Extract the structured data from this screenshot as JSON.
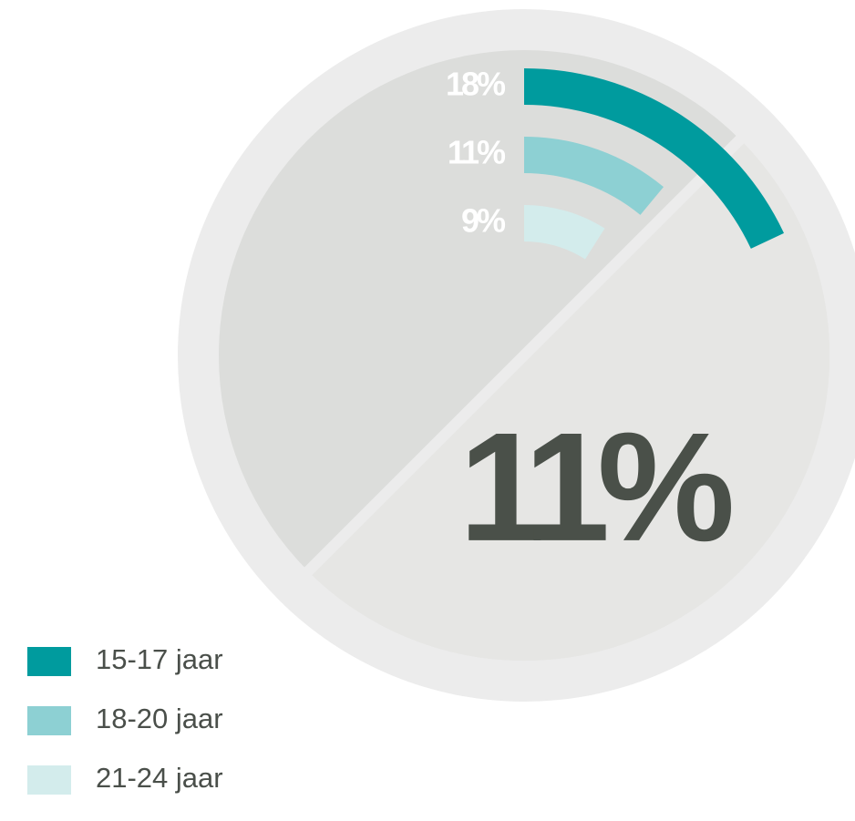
{
  "chart_data": {
    "type": "radial_bar",
    "categories": [
      "15-17 jaar",
      "18-20 jaar",
      "21-24 jaar"
    ],
    "values": [
      18,
      11,
      9
    ],
    "value_labels": [
      "18%",
      "11%",
      "9%"
    ],
    "colors": [
      "#009b9e",
      "#8dd0d3",
      "#d3ecec"
    ],
    "ylim": [
      0,
      100
    ],
    "annotation": "11%"
  }
}
